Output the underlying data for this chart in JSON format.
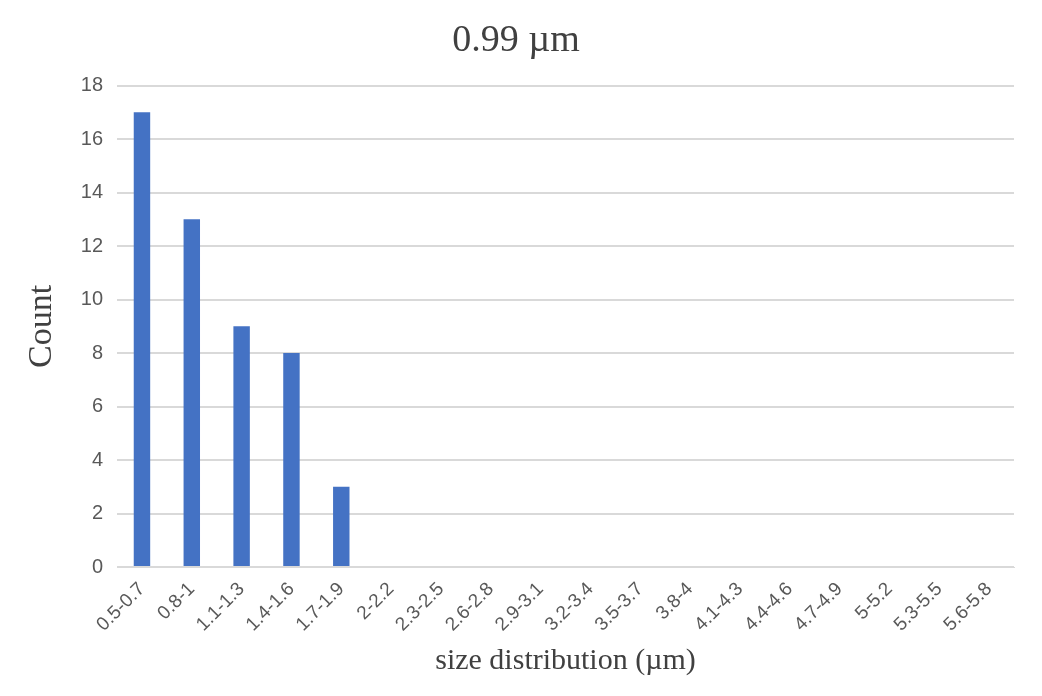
{
  "chart_data": {
    "type": "bar",
    "title": "0.99 µm",
    "xlabel": "size distribution (µm)",
    "ylabel": "Count",
    "categories": [
      "0.5-0.7",
      "0.8-1",
      "1.1-1.3",
      "1.4-1.6",
      "1.7-1.9",
      "2-2.2",
      "2.3-2.5",
      "2.6-2.8",
      "2.9-3.1",
      "3.2-3.4",
      "3.5-3.7",
      "3.8-4",
      "4.1-4.3",
      "4.4-4.6",
      "4.7-4.9",
      "5-5.2",
      "5.3-5.5",
      "5.6-5.8"
    ],
    "values": [
      17,
      13,
      9,
      8,
      3,
      0,
      0,
      0,
      0,
      0,
      0,
      0,
      0,
      0,
      0,
      0,
      0,
      0
    ],
    "color": "#4472c4",
    "ylim": [
      0,
      18
    ],
    "yticks": [
      0,
      2,
      4,
      6,
      8,
      10,
      12,
      14,
      16,
      18
    ],
    "grid": "y"
  }
}
